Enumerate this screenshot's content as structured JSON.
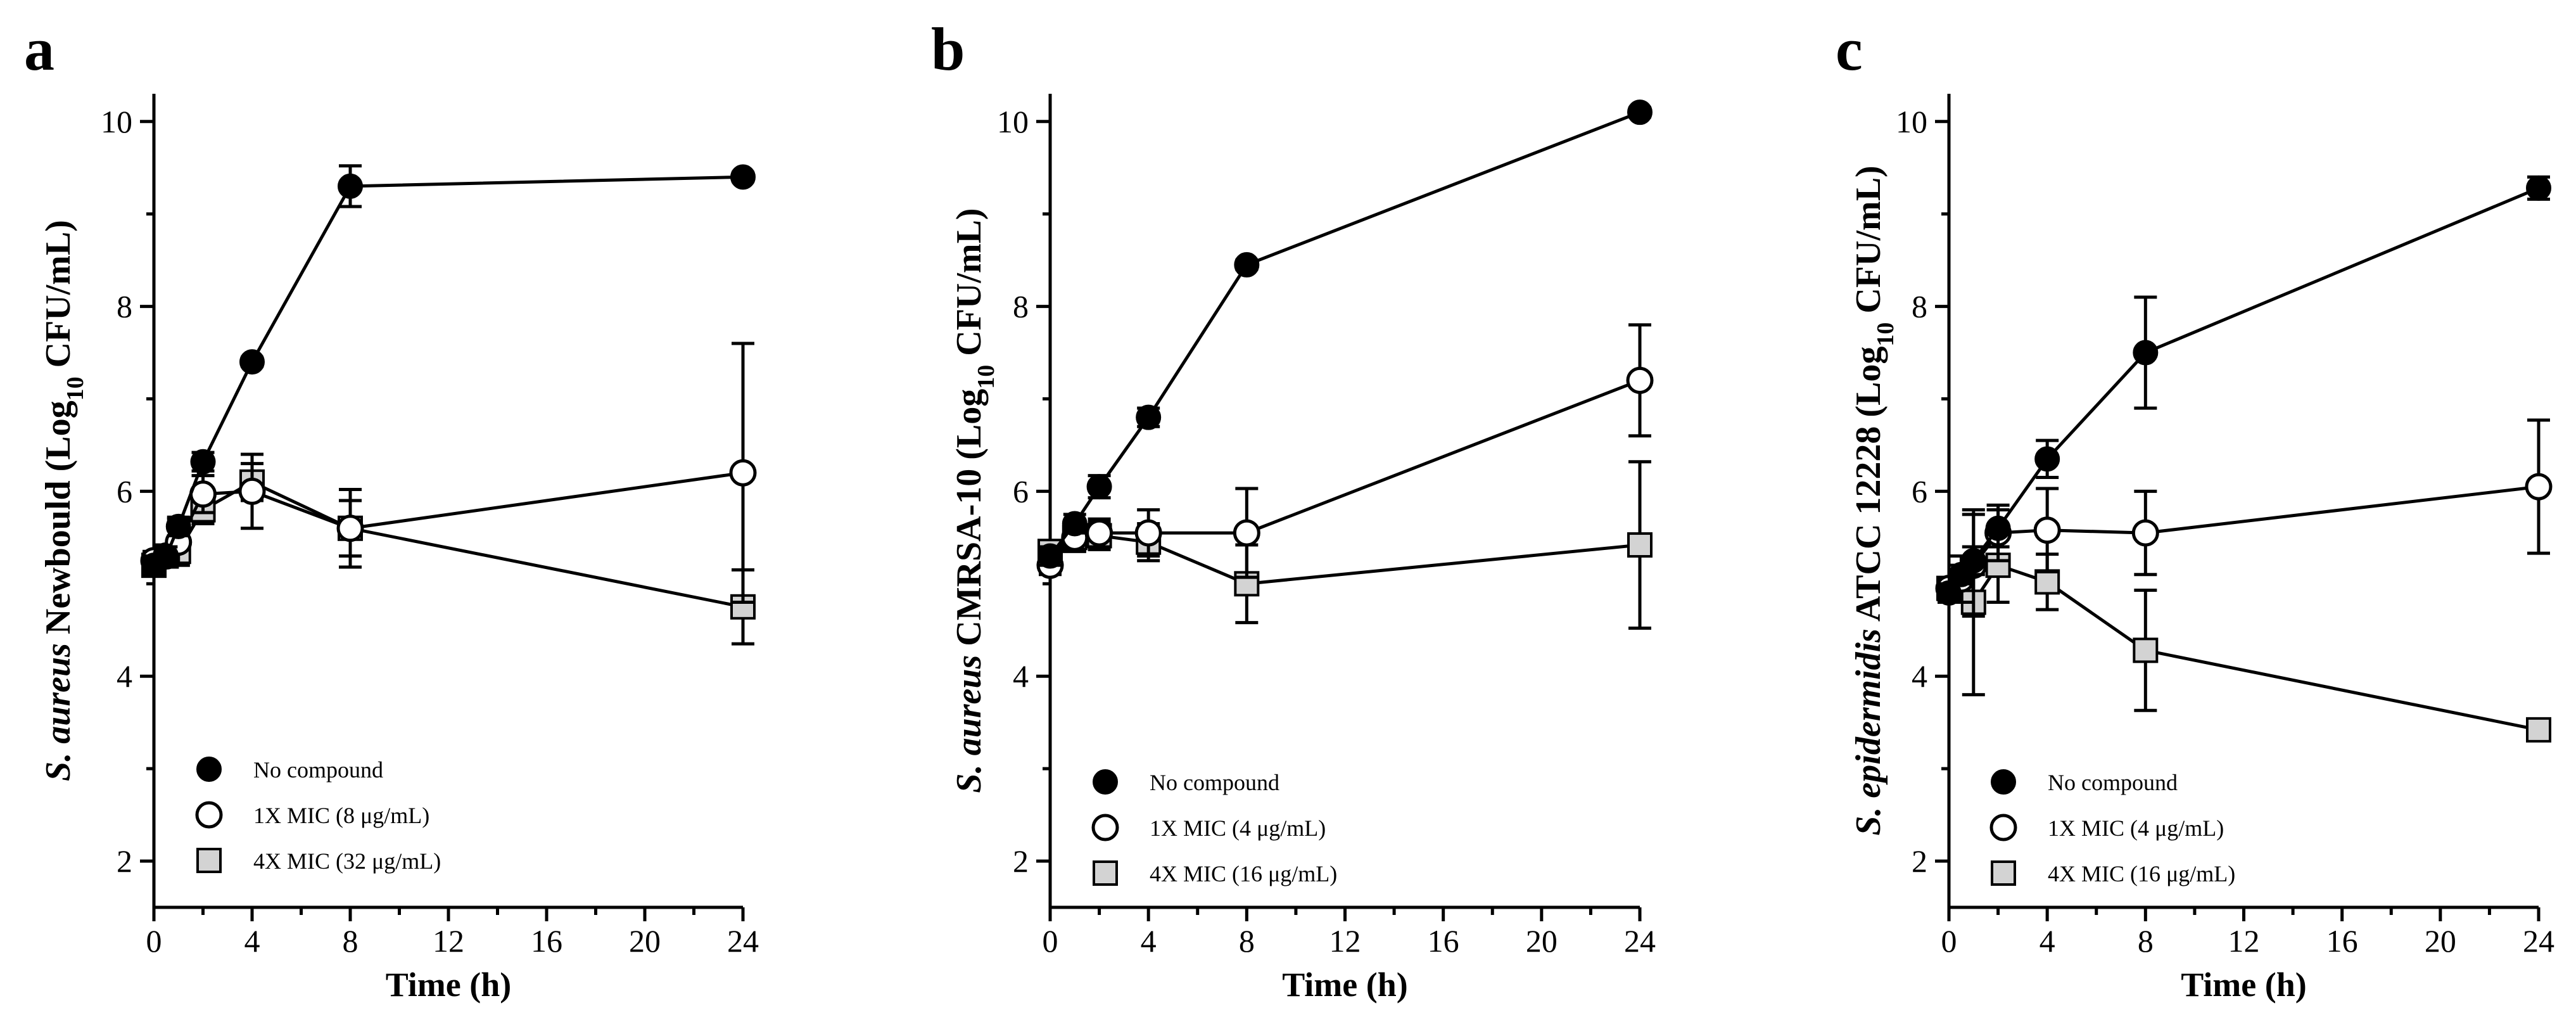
{
  "colors": {
    "no_compound": "#000000",
    "mic1_fill": "#ffffff",
    "mic4_fill": "#d3d3d3",
    "stroke": "#000000"
  },
  "chart_data": [
    {
      "type": "line",
      "panel_label": "a",
      "ylabel_italic": "S. aureus",
      "ylabel_rest": " Newbould (Log",
      "ylabel_sub": "10",
      "ylabel_end": " CFU/mL)",
      "xlabel": "Time (h)",
      "xlim": [
        0,
        24
      ],
      "ylim": [
        1.5,
        10.3
      ],
      "xticks": [
        0,
        4,
        8,
        12,
        16,
        20,
        24
      ],
      "yticks": [
        2,
        4,
        6,
        8,
        10
      ],
      "legend_position": "bottom-left",
      "series": [
        {
          "name": "No compound",
          "marker": "filled-circle",
          "x": [
            0,
            0.5,
            1,
            2,
            4,
            8,
            24
          ],
          "y": [
            5.2,
            5.3,
            5.62,
            6.32,
            7.4,
            9.3,
            9.4
          ],
          "err": [
            0.1,
            0.1,
            0.1,
            0.1,
            0.05,
            0.22,
            0.05
          ]
        },
        {
          "name": "1X MIC (8 μg/mL)",
          "marker": "open-circle",
          "x": [
            0,
            0.5,
            1,
            2,
            4,
            8,
            24
          ],
          "y": [
            5.25,
            5.3,
            5.45,
            5.97,
            6.0,
            5.6,
            6.2
          ],
          "err": [
            0.1,
            0.1,
            0.25,
            0.2,
            0.4,
            0.42,
            1.4
          ]
        },
        {
          "name": "4X MIC (32 μg/mL)",
          "marker": "square",
          "x": [
            0,
            0.5,
            1,
            2,
            4,
            8,
            24
          ],
          "y": [
            5.2,
            5.3,
            5.35,
            5.8,
            6.1,
            5.6,
            4.75
          ],
          "err": [
            0.1,
            0.1,
            0.15,
            0.15,
            0.2,
            0.3,
            0.4
          ]
        }
      ]
    },
    {
      "type": "line",
      "panel_label": "b",
      "ylabel_italic": "S. aureus",
      "ylabel_rest": " CMRSA-10 (Log",
      "ylabel_sub": "10",
      "ylabel_end": " CFU/mL)",
      "xlabel": "Time (h)",
      "xlim": [
        0,
        24
      ],
      "ylim": [
        1.5,
        10.3
      ],
      "xticks": [
        0,
        4,
        8,
        12,
        16,
        20,
        24
      ],
      "yticks": [
        2,
        4,
        6,
        8,
        10
      ],
      "legend_position": "bottom-left",
      "series": [
        {
          "name": "No compound",
          "marker": "filled-circle",
          "x": [
            0,
            1,
            2,
            4,
            8,
            24
          ],
          "y": [
            5.3,
            5.65,
            6.05,
            6.8,
            8.45,
            10.1
          ],
          "err": [
            0.1,
            0.1,
            0.12,
            0.1,
            0.05,
            0.05
          ]
        },
        {
          "name": "1X MIC (4 μg/mL)",
          "marker": "open-circle",
          "x": [
            0,
            1,
            2,
            4,
            8,
            24
          ],
          "y": [
            5.2,
            5.5,
            5.55,
            5.55,
            5.55,
            7.2
          ],
          "err": [
            0.1,
            0.15,
            0.15,
            0.25,
            0.48,
            0.6
          ]
        },
        {
          "name": "4X MIC (16 μg/mL)",
          "marker": "square",
          "x": [
            0,
            1,
            2,
            4,
            8,
            24
          ],
          "y": [
            5.35,
            5.5,
            5.52,
            5.45,
            5.0,
            5.42
          ],
          "err": [
            0.1,
            0.15,
            0.15,
            0.2,
            0.42,
            0.9
          ]
        }
      ]
    },
    {
      "type": "line",
      "panel_label": "c",
      "ylabel_italic": "S. epidermidis",
      "ylabel_rest": " ATCC 12228 (Log",
      "ylabel_sub": "10",
      "ylabel_end": " CFU/mL)",
      "xlabel": "Time (h)",
      "xlim": [
        0,
        24
      ],
      "ylim": [
        1.5,
        10.3
      ],
      "xticks": [
        0,
        4,
        8,
        12,
        16,
        20,
        24
      ],
      "yticks": [
        2,
        4,
        6,
        8,
        10
      ],
      "legend_position": "bottom-left",
      "series": [
        {
          "name": "No compound",
          "marker": "filled-circle",
          "x": [
            0,
            0.5,
            1,
            2,
            4,
            8,
            24
          ],
          "y": [
            4.9,
            5.1,
            5.25,
            5.6,
            6.35,
            7.5,
            9.28
          ],
          "err": [
            0.1,
            0.1,
            0.15,
            0.2,
            0.2,
            0.6,
            0.12
          ]
        },
        {
          "name": "1X MIC (4 μg/mL)",
          "marker": "open-circle",
          "x": [
            0,
            0.5,
            1,
            2,
            4,
            8,
            24
          ],
          "y": [
            4.95,
            5.05,
            5.2,
            5.55,
            5.58,
            5.55,
            6.05
          ],
          "err": [
            0.1,
            0.25,
            0.55,
            0.3,
            0.45,
            0.45,
            0.72
          ]
        },
        {
          "name": "4X MIC (16 μg/mL)",
          "marker": "square",
          "x": [
            0,
            0.5,
            1,
            2,
            4,
            8,
            24
          ],
          "y": [
            4.95,
            5.0,
            4.8,
            5.2,
            5.02,
            4.28,
            3.42
          ],
          "err": [
            0.1,
            0.15,
            1.0,
            0.4,
            0.3,
            0.65,
            0.05
          ]
        }
      ]
    }
  ]
}
